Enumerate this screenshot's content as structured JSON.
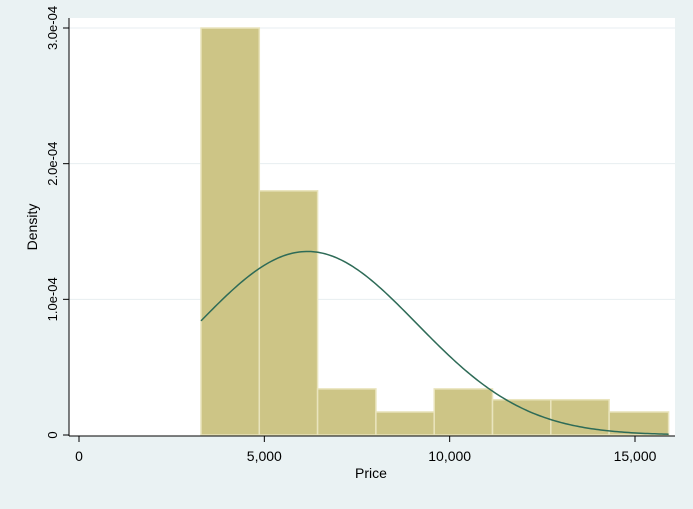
{
  "chart_data": {
    "type": "bar",
    "subtype": "histogram-with-normal-density",
    "xlabel": "Price",
    "ylabel": "Density",
    "xlim": [
      0,
      16000
    ],
    "ylim": [
      0,
      0.0003
    ],
    "x_ticks": [
      {
        "value": 0,
        "label": "0"
      },
      {
        "value": 5000,
        "label": "5,000"
      },
      {
        "value": 10000,
        "label": "10,000"
      },
      {
        "value": 15000,
        "label": "15,000"
      }
    ],
    "y_ticks": [
      {
        "value": 0,
        "label": "0"
      },
      {
        "value": 0.0001,
        "label": "1.0e-04"
      },
      {
        "value": 0.0002,
        "label": "2.0e-04"
      },
      {
        "value": 0.0003,
        "label": "3.0e-04"
      }
    ],
    "bins": [
      {
        "start": 3291,
        "end": 4864,
        "density": 0.0003
      },
      {
        "start": 4864,
        "end": 6437,
        "density": 0.00018
      },
      {
        "start": 6437,
        "end": 8010,
        "density": 3.4e-05
      },
      {
        "start": 8010,
        "end": 9583,
        "density": 1.7e-05
      },
      {
        "start": 9583,
        "end": 11156,
        "density": 3.4e-05
      },
      {
        "start": 11156,
        "end": 12729,
        "density": 2.6e-05
      },
      {
        "start": 12729,
        "end": 14302,
        "density": 2.6e-05
      },
      {
        "start": 14302,
        "end": 15906,
        "density": 1.7e-05
      }
    ],
    "normal_curve": {
      "mean": 6165,
      "sd": 2949,
      "x_from": 3291,
      "x_to": 15906
    },
    "grid": true,
    "colors": {
      "bar_fill": "#cdc586",
      "bar_stroke": "#e9e4bd",
      "curve": "#2e6b57",
      "gridline": "#e7eef0",
      "background": "#eaf2f3",
      "plot_area": "#ffffff"
    }
  }
}
